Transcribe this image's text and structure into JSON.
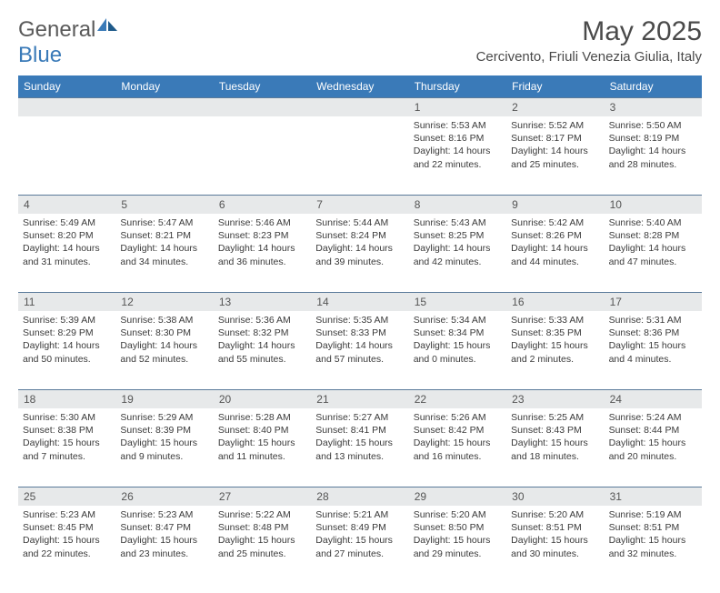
{
  "brand": {
    "part1": "General",
    "part2": "Blue"
  },
  "title": "May 2025",
  "location": "Cercivento, Friuli Venezia Giulia, Italy",
  "weekdays": [
    "Sunday",
    "Monday",
    "Tuesday",
    "Wednesday",
    "Thursday",
    "Friday",
    "Saturday"
  ],
  "colors": {
    "header_bg": "#3A7AB8",
    "header_text": "#ffffff",
    "daynum_bg": "#e7e9ea",
    "border": "#5a7a9a",
    "body_text": "#3a3a3a"
  },
  "weeks": [
    [
      null,
      null,
      null,
      null,
      {
        "n": "1",
        "sunrise": "5:53 AM",
        "sunset": "8:16 PM",
        "dl1": "Daylight: 14 hours",
        "dl2": "and 22 minutes."
      },
      {
        "n": "2",
        "sunrise": "5:52 AM",
        "sunset": "8:17 PM",
        "dl1": "Daylight: 14 hours",
        "dl2": "and 25 minutes."
      },
      {
        "n": "3",
        "sunrise": "5:50 AM",
        "sunset": "8:19 PM",
        "dl1": "Daylight: 14 hours",
        "dl2": "and 28 minutes."
      }
    ],
    [
      {
        "n": "4",
        "sunrise": "5:49 AM",
        "sunset": "8:20 PM",
        "dl1": "Daylight: 14 hours",
        "dl2": "and 31 minutes."
      },
      {
        "n": "5",
        "sunrise": "5:47 AM",
        "sunset": "8:21 PM",
        "dl1": "Daylight: 14 hours",
        "dl2": "and 34 minutes."
      },
      {
        "n": "6",
        "sunrise": "5:46 AM",
        "sunset": "8:23 PM",
        "dl1": "Daylight: 14 hours",
        "dl2": "and 36 minutes."
      },
      {
        "n": "7",
        "sunrise": "5:44 AM",
        "sunset": "8:24 PM",
        "dl1": "Daylight: 14 hours",
        "dl2": "and 39 minutes."
      },
      {
        "n": "8",
        "sunrise": "5:43 AM",
        "sunset": "8:25 PM",
        "dl1": "Daylight: 14 hours",
        "dl2": "and 42 minutes."
      },
      {
        "n": "9",
        "sunrise": "5:42 AM",
        "sunset": "8:26 PM",
        "dl1": "Daylight: 14 hours",
        "dl2": "and 44 minutes."
      },
      {
        "n": "10",
        "sunrise": "5:40 AM",
        "sunset": "8:28 PM",
        "dl1": "Daylight: 14 hours",
        "dl2": "and 47 minutes."
      }
    ],
    [
      {
        "n": "11",
        "sunrise": "5:39 AM",
        "sunset": "8:29 PM",
        "dl1": "Daylight: 14 hours",
        "dl2": "and 50 minutes."
      },
      {
        "n": "12",
        "sunrise": "5:38 AM",
        "sunset": "8:30 PM",
        "dl1": "Daylight: 14 hours",
        "dl2": "and 52 minutes."
      },
      {
        "n": "13",
        "sunrise": "5:36 AM",
        "sunset": "8:32 PM",
        "dl1": "Daylight: 14 hours",
        "dl2": "and 55 minutes."
      },
      {
        "n": "14",
        "sunrise": "5:35 AM",
        "sunset": "8:33 PM",
        "dl1": "Daylight: 14 hours",
        "dl2": "and 57 minutes."
      },
      {
        "n": "15",
        "sunrise": "5:34 AM",
        "sunset": "8:34 PM",
        "dl1": "Daylight: 15 hours",
        "dl2": "and 0 minutes."
      },
      {
        "n": "16",
        "sunrise": "5:33 AM",
        "sunset": "8:35 PM",
        "dl1": "Daylight: 15 hours",
        "dl2": "and 2 minutes."
      },
      {
        "n": "17",
        "sunrise": "5:31 AM",
        "sunset": "8:36 PM",
        "dl1": "Daylight: 15 hours",
        "dl2": "and 4 minutes."
      }
    ],
    [
      {
        "n": "18",
        "sunrise": "5:30 AM",
        "sunset": "8:38 PM",
        "dl1": "Daylight: 15 hours",
        "dl2": "and 7 minutes."
      },
      {
        "n": "19",
        "sunrise": "5:29 AM",
        "sunset": "8:39 PM",
        "dl1": "Daylight: 15 hours",
        "dl2": "and 9 minutes."
      },
      {
        "n": "20",
        "sunrise": "5:28 AM",
        "sunset": "8:40 PM",
        "dl1": "Daylight: 15 hours",
        "dl2": "and 11 minutes."
      },
      {
        "n": "21",
        "sunrise": "5:27 AM",
        "sunset": "8:41 PM",
        "dl1": "Daylight: 15 hours",
        "dl2": "and 13 minutes."
      },
      {
        "n": "22",
        "sunrise": "5:26 AM",
        "sunset": "8:42 PM",
        "dl1": "Daylight: 15 hours",
        "dl2": "and 16 minutes."
      },
      {
        "n": "23",
        "sunrise": "5:25 AM",
        "sunset": "8:43 PM",
        "dl1": "Daylight: 15 hours",
        "dl2": "and 18 minutes."
      },
      {
        "n": "24",
        "sunrise": "5:24 AM",
        "sunset": "8:44 PM",
        "dl1": "Daylight: 15 hours",
        "dl2": "and 20 minutes."
      }
    ],
    [
      {
        "n": "25",
        "sunrise": "5:23 AM",
        "sunset": "8:45 PM",
        "dl1": "Daylight: 15 hours",
        "dl2": "and 22 minutes."
      },
      {
        "n": "26",
        "sunrise": "5:23 AM",
        "sunset": "8:47 PM",
        "dl1": "Daylight: 15 hours",
        "dl2": "and 23 minutes."
      },
      {
        "n": "27",
        "sunrise": "5:22 AM",
        "sunset": "8:48 PM",
        "dl1": "Daylight: 15 hours",
        "dl2": "and 25 minutes."
      },
      {
        "n": "28",
        "sunrise": "5:21 AM",
        "sunset": "8:49 PM",
        "dl1": "Daylight: 15 hours",
        "dl2": "and 27 minutes."
      },
      {
        "n": "29",
        "sunrise": "5:20 AM",
        "sunset": "8:50 PM",
        "dl1": "Daylight: 15 hours",
        "dl2": "and 29 minutes."
      },
      {
        "n": "30",
        "sunrise": "5:20 AM",
        "sunset": "8:51 PM",
        "dl1": "Daylight: 15 hours",
        "dl2": "and 30 minutes."
      },
      {
        "n": "31",
        "sunrise": "5:19 AM",
        "sunset": "8:51 PM",
        "dl1": "Daylight: 15 hours",
        "dl2": "and 32 minutes."
      }
    ]
  ]
}
